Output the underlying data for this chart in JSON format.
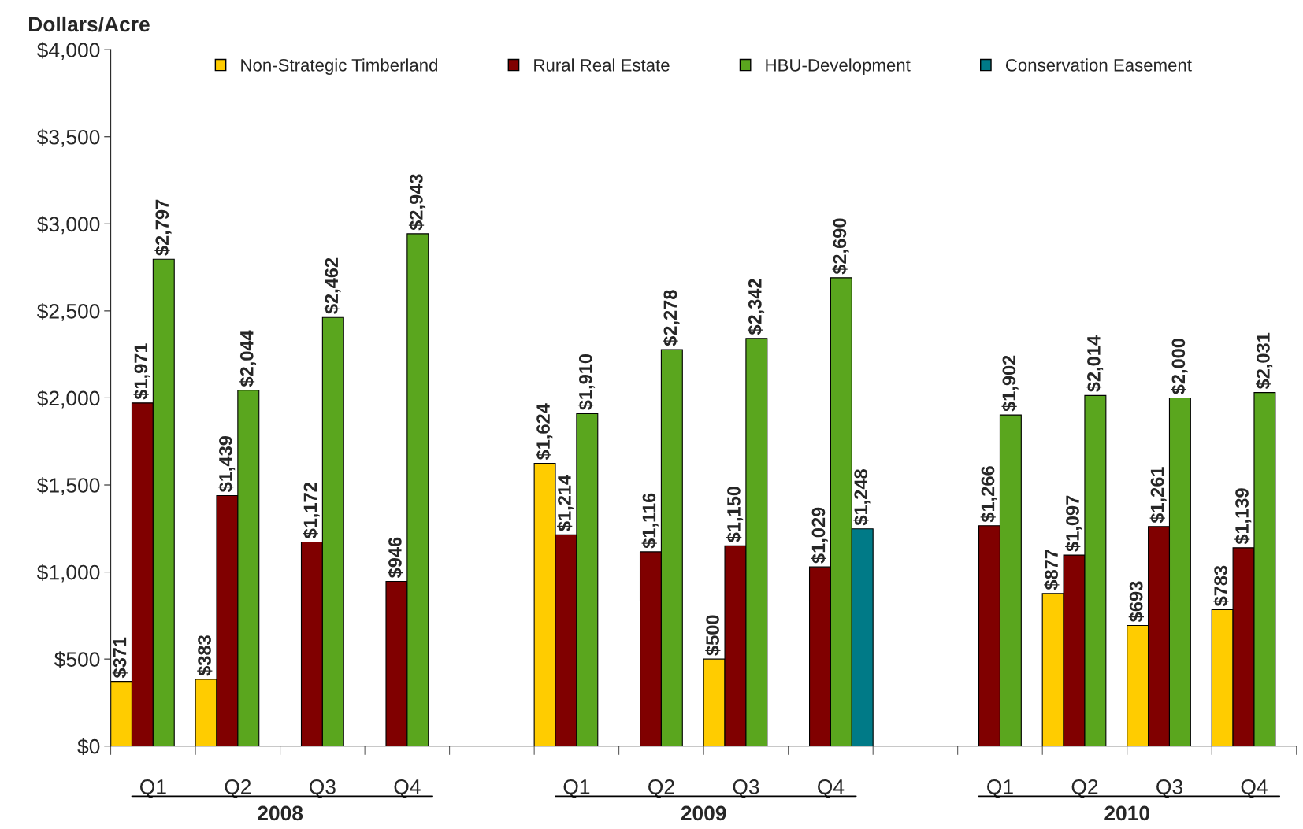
{
  "chart_data": {
    "type": "bar",
    "ylabel": "Dollars/Acre",
    "categories": [
      "Q1",
      "Q2",
      "Q3",
      "Q4",
      null,
      "Q1",
      "Q2",
      "Q3",
      "Q4",
      null,
      "Q1",
      "Q2",
      "Q3",
      "Q4"
    ],
    "annotations": [
      "2008",
      "2009",
      "2010"
    ],
    "series": [
      {
        "name": "Non-Strategic Timberland",
        "color": "#ffcc00",
        "values": [
          371,
          383,
          null,
          null,
          null,
          1624,
          null,
          500,
          null,
          null,
          null,
          877,
          693,
          783
        ],
        "value_labels": [
          "$371",
          "$383",
          null,
          null,
          null,
          "$1,624",
          null,
          "$500",
          null,
          null,
          null,
          "$877",
          "$693",
          "$783"
        ]
      },
      {
        "name": "Rural Real Estate",
        "color": "#800000",
        "values": [
          1971,
          1439,
          1172,
          946,
          null,
          1214,
          1116,
          1150,
          1029,
          null,
          1266,
          1097,
          1261,
          1139
        ],
        "value_labels": [
          "$1,971",
          "$1,439",
          "$1,172",
          "$946",
          null,
          "$1,214",
          "$1,116",
          "$1,150",
          "$1,029",
          null,
          "$1,266",
          "$1,097",
          "$1,261",
          "$1,139"
        ]
      },
      {
        "name": "HBU-Development",
        "color": "#5aa61e",
        "values": [
          2797,
          2044,
          2462,
          2943,
          null,
          1910,
          2278,
          2342,
          2690,
          null,
          1902,
          2014,
          2000,
          2031
        ],
        "value_labels": [
          "$2,797",
          "$2,044",
          "$2,462",
          "$2,943",
          null,
          "$1,910",
          "$2,278",
          "$2,342",
          "$2,690",
          null,
          "$1,902",
          "$2,014",
          "$2,000",
          "$2,031"
        ]
      },
      {
        "name": "Conservation Easement",
        "color": "#007a87",
        "values": [
          null,
          null,
          null,
          null,
          null,
          null,
          null,
          null,
          1248,
          null,
          null,
          null,
          null,
          null
        ],
        "value_labels": [
          null,
          null,
          null,
          null,
          null,
          null,
          null,
          null,
          "$1,248",
          null,
          null,
          null,
          null,
          null
        ]
      }
    ],
    "ylim": [
      0,
      4000
    ],
    "yticks": [
      {
        "value": 0,
        "label": "$0"
      },
      {
        "value": 500,
        "label": "$500"
      },
      {
        "value": 1000,
        "label": "$1,000"
      },
      {
        "value": 1500,
        "label": "$1,500"
      },
      {
        "value": 2000,
        "label": "$2,000"
      },
      {
        "value": 2500,
        "label": "$2,500"
      },
      {
        "value": 3000,
        "label": "$3,000"
      },
      {
        "value": 3500,
        "label": "$3,500"
      },
      {
        "value": 4000,
        "label": "$4,000"
      }
    ],
    "legend": "top",
    "grid": false
  }
}
